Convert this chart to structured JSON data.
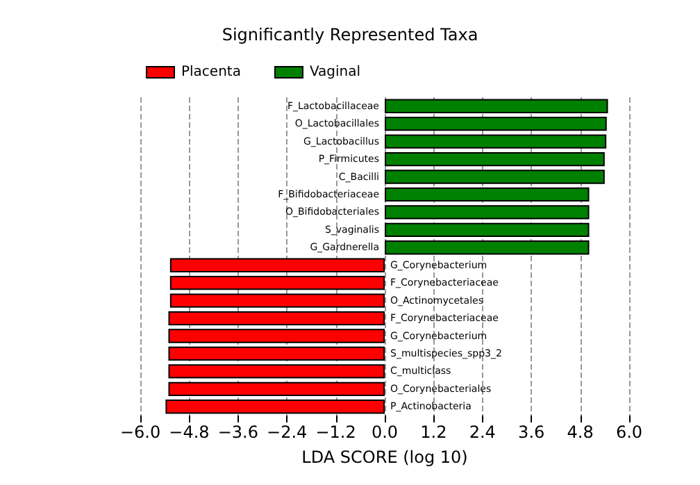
{
  "chart_data": {
    "type": "bar",
    "orientation": "horizontal",
    "title": "Significantly Represented Taxa",
    "xlabel": "LDA SCORE (log 10)",
    "categories": [
      "F_Lactobacillaceae",
      "O_Lactobacillales",
      "G_Lactobacillus",
      "P_Firmicutes",
      "C_Bacilli",
      "F_Bifidobacteriaceae",
      "O_Bifidobacteriales",
      "S_vaginalis",
      "G_Gardnerella",
      "G_Corynebacterium",
      "F_Corynebacteriaceae",
      "O_Actinomycetales",
      "F_Corynebacteriaceae",
      "G_Corynebacterium",
      "S_multispecies_spp3_2",
      "C_multiclass",
      "O_Corynebacteriales",
      "P_Actinobacteria"
    ],
    "series": [
      {
        "name": "Placenta",
        "color": "#ff0000",
        "values": [
          null,
          null,
          null,
          null,
          null,
          null,
          null,
          null,
          null,
          -5.27,
          -5.27,
          -5.27,
          -5.31,
          -5.31,
          -5.31,
          -5.31,
          -5.31,
          -5.38
        ]
      },
      {
        "name": "Vaginal",
        "color": "#008000",
        "values": [
          5.48,
          5.45,
          5.44,
          5.4,
          5.4,
          5.02,
          5.02,
          5.02,
          5.02,
          null,
          null,
          null,
          null,
          null,
          null,
          null,
          null,
          null
        ]
      }
    ],
    "xlim": [
      -6.0,
      6.0
    ],
    "xticks": [
      {
        "value": -6.0,
        "label": "−6.0"
      },
      {
        "value": -4.8,
        "label": "−4.8"
      },
      {
        "value": -3.6,
        "label": "−3.6"
      },
      {
        "value": -2.4,
        "label": "−2.4"
      },
      {
        "value": -1.2,
        "label": "−1.2"
      },
      {
        "value": 0,
        "label": "0.0"
      },
      {
        "value": 1.2,
        "label": "1.2"
      },
      {
        "value": 2.4,
        "label": "2.4"
      },
      {
        "value": 3.6,
        "label": "3.6"
      },
      {
        "value": 4.8,
        "label": "4.8"
      },
      {
        "value": 6.0,
        "label": "6.0"
      }
    ],
    "grid": "x",
    "legend": "top left",
    "tick_labels": "x"
  }
}
